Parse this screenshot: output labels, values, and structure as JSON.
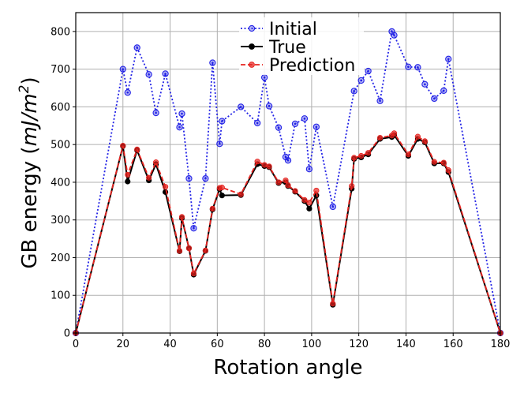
{
  "chart_data": {
    "type": "line",
    "xlabel": "Rotation angle",
    "ylabel_prefix": "GB energy (",
    "ylabel_unit_main": "mJ/m",
    "ylabel_unit_sup": "2",
    "ylabel_suffix": ")",
    "xlim": [
      0,
      180
    ],
    "ylim": [
      0,
      850
    ],
    "xticks": [
      0,
      20,
      40,
      60,
      80,
      100,
      120,
      140,
      160,
      180
    ],
    "yticks": [
      0,
      100,
      200,
      300,
      400,
      500,
      600,
      700,
      800
    ],
    "grid": true,
    "legend_position": "top-center",
    "series": [
      {
        "name": "Initial",
        "color": "#2323e6",
        "style": "dotted",
        "marker": "open-circle",
        "points": [
          [
            0,
            0
          ],
          [
            20,
            700
          ],
          [
            22,
            638
          ],
          [
            26,
            757
          ],
          [
            31,
            686
          ],
          [
            34,
            584
          ],
          [
            38,
            688
          ],
          [
            44,
            546
          ],
          [
            45,
            582
          ],
          [
            48,
            410
          ],
          [
            50,
            278
          ],
          [
            55,
            410
          ],
          [
            58,
            717
          ],
          [
            61,
            502
          ],
          [
            62,
            562
          ],
          [
            70,
            600
          ],
          [
            77,
            557
          ],
          [
            80,
            678
          ],
          [
            82,
            602
          ],
          [
            86,
            545
          ],
          [
            89,
            467
          ],
          [
            90,
            458
          ],
          [
            93,
            555
          ],
          [
            97,
            569
          ],
          [
            99,
            435
          ],
          [
            102,
            547
          ],
          [
            109,
            335
          ],
          [
            118,
            642
          ],
          [
            121,
            670
          ],
          [
            124,
            695
          ],
          [
            129,
            616
          ],
          [
            134,
            800
          ],
          [
            135,
            790
          ],
          [
            141,
            706
          ],
          [
            145,
            705
          ],
          [
            148,
            660
          ],
          [
            152,
            622
          ],
          [
            156,
            643
          ],
          [
            158,
            727
          ],
          [
            180,
            0
          ]
        ]
      },
      {
        "name": "True",
        "color": "#000000",
        "style": "solid",
        "marker": "filled-circle",
        "points": [
          [
            0,
            0
          ],
          [
            20,
            496
          ],
          [
            22,
            402
          ],
          [
            26,
            485
          ],
          [
            31,
            405
          ],
          [
            34,
            448
          ],
          [
            38,
            374
          ],
          [
            44,
            217
          ],
          [
            45,
            305
          ],
          [
            48,
            225
          ],
          [
            50,
            155
          ],
          [
            55,
            218
          ],
          [
            58,
            328
          ],
          [
            61,
            382
          ],
          [
            62,
            365
          ],
          [
            70,
            366
          ],
          [
            77,
            448
          ],
          [
            80,
            443
          ],
          [
            82,
            440
          ],
          [
            86,
            398
          ],
          [
            89,
            400
          ],
          [
            90,
            390
          ],
          [
            93,
            375
          ],
          [
            97,
            350
          ],
          [
            99,
            330
          ],
          [
            102,
            365
          ],
          [
            109,
            75
          ],
          [
            117,
            383
          ],
          [
            118,
            462
          ],
          [
            121,
            466
          ],
          [
            124,
            474
          ],
          [
            129,
            515
          ],
          [
            134,
            520
          ],
          [
            135,
            525
          ],
          [
            141,
            470
          ],
          [
            145,
            515
          ],
          [
            148,
            506
          ],
          [
            152,
            450
          ],
          [
            156,
            450
          ],
          [
            158,
            427
          ],
          [
            180,
            0
          ]
        ]
      },
      {
        "name": "Prediction",
        "color": "#e6231f",
        "style": "dashed",
        "marker": "filled-circle",
        "points": [
          [
            0,
            0
          ],
          [
            20,
            497
          ],
          [
            22,
            420
          ],
          [
            26,
            487
          ],
          [
            31,
            412
          ],
          [
            34,
            453
          ],
          [
            38,
            388
          ],
          [
            44,
            218
          ],
          [
            45,
            308
          ],
          [
            48,
            225
          ],
          [
            50,
            158
          ],
          [
            55,
            219
          ],
          [
            58,
            330
          ],
          [
            61,
            385
          ],
          [
            62,
            386
          ],
          [
            70,
            368
          ],
          [
            77,
            455
          ],
          [
            80,
            446
          ],
          [
            82,
            442
          ],
          [
            86,
            400
          ],
          [
            89,
            405
          ],
          [
            90,
            392
          ],
          [
            93,
            377
          ],
          [
            97,
            353
          ],
          [
            99,
            346
          ],
          [
            102,
            378
          ],
          [
            109,
            78
          ],
          [
            117,
            390
          ],
          [
            118,
            465
          ],
          [
            121,
            470
          ],
          [
            124,
            478
          ],
          [
            129,
            518
          ],
          [
            134,
            524
          ],
          [
            135,
            530
          ],
          [
            141,
            474
          ],
          [
            145,
            521
          ],
          [
            148,
            509
          ],
          [
            152,
            454
          ],
          [
            156,
            452
          ],
          [
            158,
            432
          ],
          [
            180,
            0
          ]
        ]
      }
    ]
  }
}
